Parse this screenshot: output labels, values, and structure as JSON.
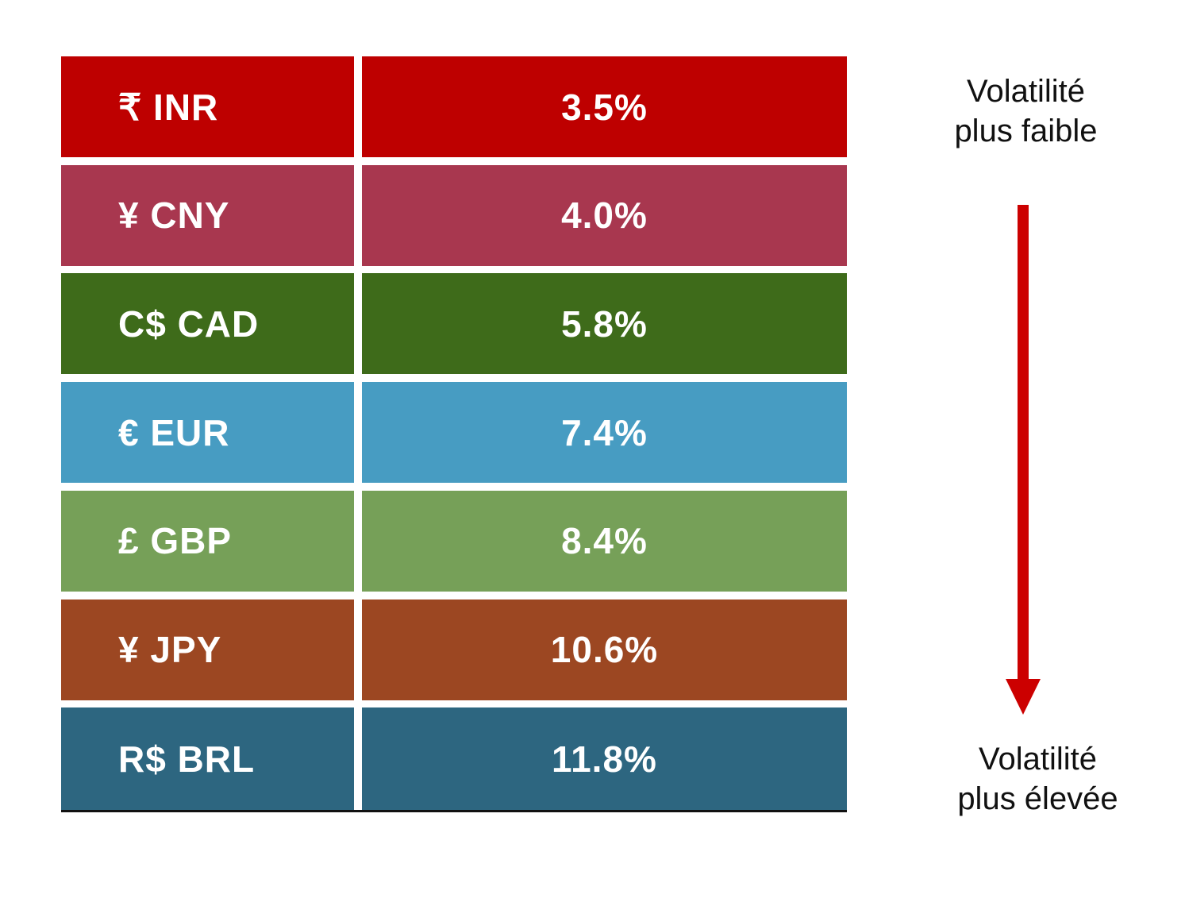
{
  "chart_data": {
    "type": "table",
    "title": "",
    "categories": [
      "₹ INR",
      "¥ CNY",
      "C$ CAD",
      "€ EUR",
      "£ GBP",
      "¥ JPY",
      "R$ BRL"
    ],
    "values": [
      3.5,
      4.0,
      5.8,
      7.4,
      8.4,
      10.6,
      11.8
    ],
    "rows": [
      {
        "label": "₹ INR",
        "value": "3.5%",
        "color": "#BE0000"
      },
      {
        "label": "¥ CNY",
        "value": "4.0%",
        "color": "#A8374F"
      },
      {
        "label": "C$ CAD",
        "value": "5.8%",
        "color": "#3E6B1A"
      },
      {
        "label": "€ EUR",
        "value": "7.4%",
        "color": "#479CC2"
      },
      {
        "label": "£ GBP",
        "value": "8.4%",
        "color": "#76A058"
      },
      {
        "label": "¥ JPY",
        "value": "10.6%",
        "color": "#9C4722"
      },
      {
        "label": "R$ BRL",
        "value": "11.8%",
        "color": "#2D6680"
      }
    ],
    "annotations": {
      "top_line1": "Volatilité",
      "top_line2": "plus faible",
      "bottom_line1": "Volatilité",
      "bottom_line2": "plus élevée",
      "arrow_color": "#CC0000"
    }
  }
}
